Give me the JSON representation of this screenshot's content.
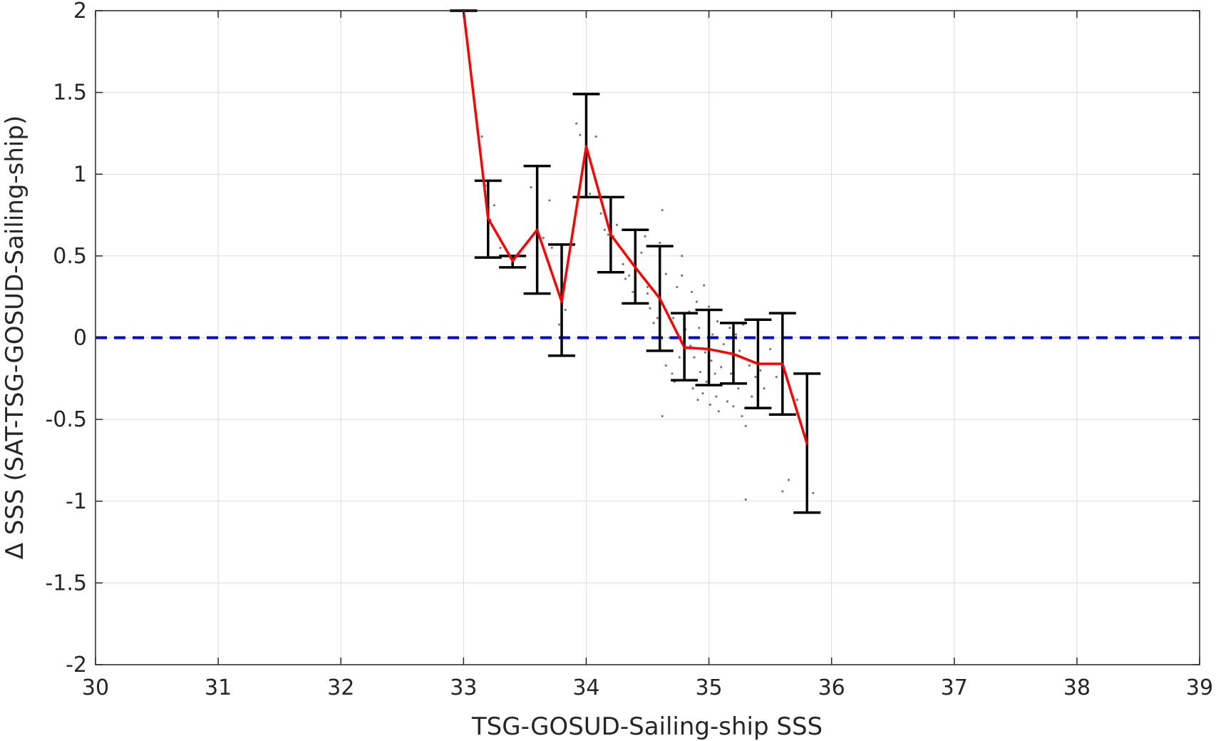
{
  "chart_data": {
    "type": "scatter",
    "title": "",
    "xlabel": "TSG-GOSUD-Sailing-ship SSS",
    "ylabel": "Δ SSS (SAT-TSG-GOSUD-Sailing-ship)",
    "xlim": [
      30,
      39
    ],
    "ylim": [
      -2,
      2
    ],
    "xticks": [
      30,
      31,
      32,
      33,
      34,
      35,
      36,
      37,
      38,
      39
    ],
    "yticks": [
      -2,
      -1.5,
      -1,
      -0.5,
      0,
      0.5,
      1,
      1.5,
      2
    ],
    "xtick_labels": [
      "30",
      "31",
      "32",
      "33",
      "34",
      "35",
      "36",
      "37",
      "38",
      "39"
    ],
    "ytick_labels": [
      "-2",
      "-1.5",
      "-1",
      "-0.5",
      "0",
      "0.5",
      "1",
      "1.5",
      "2"
    ],
    "grid": true,
    "colors": {
      "mean_line": "#ff0000",
      "error_bars": "#000000",
      "zero_line": "#0000dd",
      "scatter": "#555555",
      "grid": "#dcdcdc"
    },
    "zero_line": 0,
    "binned_mean": {
      "x": [
        33.0,
        33.2,
        33.4,
        33.6,
        33.8,
        34.0,
        34.2,
        34.4,
        34.6,
        34.8,
        35.0,
        35.2,
        35.4,
        35.6,
        35.8
      ],
      "y": [
        2.0,
        0.73,
        0.47,
        0.66,
        0.22,
        1.17,
        0.63,
        0.43,
        0.24,
        -0.06,
        -0.07,
        -0.1,
        -0.16,
        -0.16,
        -0.65
      ],
      "err_low": [
        2.0,
        0.49,
        0.43,
        0.27,
        -0.11,
        0.86,
        0.4,
        0.21,
        -0.08,
        -0.26,
        -0.29,
        -0.28,
        -0.43,
        -0.47,
        -1.07
      ],
      "err_high": [
        2.0,
        0.96,
        0.5,
        1.05,
        0.57,
        1.49,
        0.86,
        0.66,
        0.56,
        0.15,
        0.17,
        0.09,
        0.11,
        0.15,
        -0.22
      ]
    },
    "scatter_points": [
      [
        33.15,
        1.23
      ],
      [
        33.25,
        0.81
      ],
      [
        33.22,
        0.72
      ],
      [
        33.3,
        0.55
      ],
      [
        33.18,
        0.93
      ],
      [
        33.55,
        0.92
      ],
      [
        33.6,
        0.84
      ],
      [
        33.65,
        0.61
      ],
      [
        33.7,
        0.84
      ],
      [
        33.72,
        0.55
      ],
      [
        33.83,
        0.17
      ],
      [
        33.78,
        0.08
      ],
      [
        33.81,
        0.33
      ],
      [
        33.92,
        1.31
      ],
      [
        33.95,
        1.24
      ],
      [
        34.08,
        1.23
      ],
      [
        34.03,
        0.88
      ],
      [
        34.12,
        0.76
      ],
      [
        34.15,
        0.66
      ],
      [
        34.18,
        0.63
      ],
      [
        34.22,
        0.62
      ],
      [
        34.25,
        0.69
      ],
      [
        34.28,
        0.55
      ],
      [
        34.3,
        0.45
      ],
      [
        34.32,
        0.36
      ],
      [
        34.35,
        0.38
      ],
      [
        34.38,
        0.28
      ],
      [
        34.4,
        0.22
      ],
      [
        34.42,
        0.41
      ],
      [
        34.45,
        0.52
      ],
      [
        34.48,
        0.62
      ],
      [
        34.5,
        0.31
      ],
      [
        34.52,
        0.18
      ],
      [
        34.55,
        0.09
      ],
      [
        34.58,
        0.12
      ],
      [
        34.6,
        0.58
      ],
      [
        34.62,
        0.78
      ],
      [
        34.65,
        0.39
      ],
      [
        34.68,
        0.0
      ],
      [
        34.7,
        -0.22
      ],
      [
        34.71,
        0.12
      ],
      [
        34.72,
        -0.27
      ],
      [
        34.74,
        0.31
      ],
      [
        34.75,
        0.0
      ],
      [
        34.76,
        -0.12
      ],
      [
        34.78,
        0.38
      ],
      [
        34.8,
        -0.19
      ],
      [
        34.81,
        0.05
      ],
      [
        34.82,
        -0.26
      ],
      [
        34.84,
        0.16
      ],
      [
        34.85,
        -0.05
      ],
      [
        34.86,
        0.28
      ],
      [
        34.87,
        -0.31
      ],
      [
        34.88,
        -0.12
      ],
      [
        34.9,
        0.22
      ],
      [
        34.91,
        -0.38
      ],
      [
        34.92,
        0.06
      ],
      [
        34.93,
        -0.21
      ],
      [
        34.95,
        -0.34
      ],
      [
        34.96,
        0.32
      ],
      [
        34.97,
        -0.09
      ],
      [
        34.98,
        -0.27
      ],
      [
        35.0,
        0.19
      ],
      [
        35.01,
        -0.41
      ],
      [
        35.02,
        -0.14
      ],
      [
        35.03,
        0.02
      ],
      [
        35.05,
        -0.22
      ],
      [
        35.06,
        -0.36
      ],
      [
        35.07,
        0.1
      ],
      [
        35.08,
        -0.45
      ],
      [
        35.1,
        -0.18
      ],
      [
        35.12,
        -0.04
      ],
      [
        35.13,
        -0.28
      ],
      [
        35.15,
        -0.39
      ],
      [
        35.17,
        0.06
      ],
      [
        35.18,
        -0.22
      ],
      [
        35.2,
        -0.42
      ],
      [
        35.22,
        0.02
      ],
      [
        35.24,
        -0.31
      ],
      [
        35.25,
        -0.08
      ],
      [
        35.27,
        -0.48
      ],
      [
        35.28,
        0.08
      ],
      [
        35.3,
        -0.54
      ],
      [
        35.3,
        -0.99
      ],
      [
        35.33,
        -0.17
      ],
      [
        35.35,
        -0.36
      ],
      [
        35.38,
        -0.24
      ],
      [
        35.4,
        0.04
      ],
      [
        35.42,
        -0.2
      ],
      [
        35.45,
        -0.31
      ],
      [
        35.5,
        -0.07
      ],
      [
        35.55,
        -0.24
      ],
      [
        35.6,
        -0.94
      ],
      [
        35.65,
        -0.87
      ],
      [
        35.72,
        -0.38
      ],
      [
        35.85,
        -0.95
      ],
      [
        34.62,
        -0.48
      ],
      [
        34.65,
        -0.17
      ],
      [
        34.5,
        0.27
      ],
      [
        34.78,
        0.5
      ]
    ]
  }
}
